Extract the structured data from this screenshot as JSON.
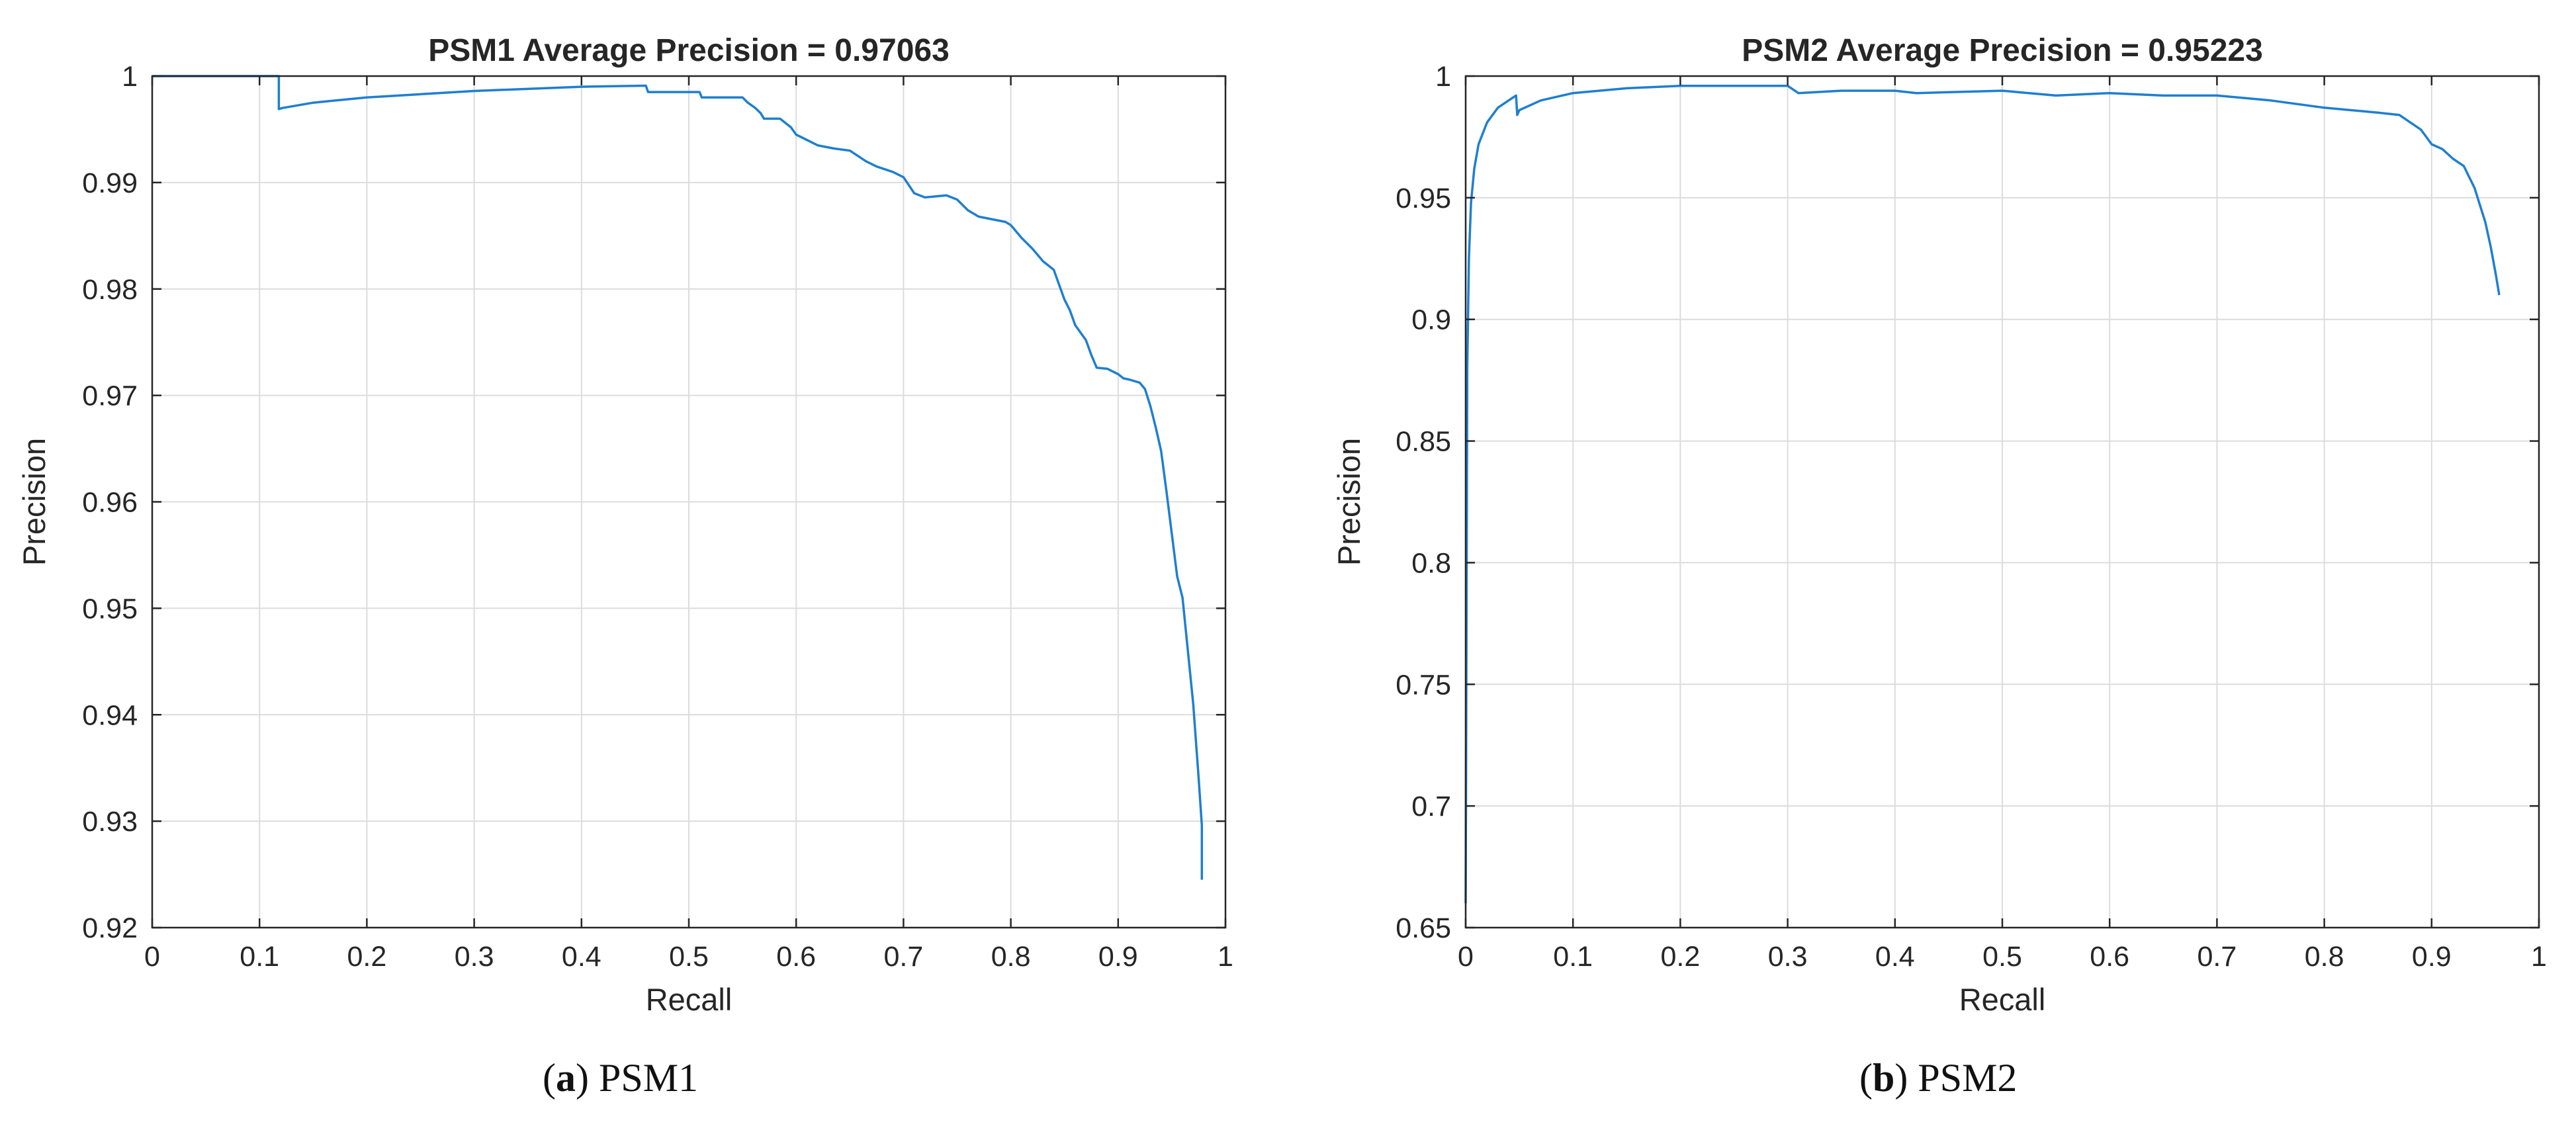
{
  "chart_data": [
    {
      "type": "line",
      "title": "PSM1 Average Precision = 0.97063",
      "xlabel": "Recall",
      "ylabel": "Precision",
      "xlim": [
        0,
        1
      ],
      "ylim": [
        0.92,
        1
      ],
      "xticks": [
        0,
        0.1,
        0.2,
        0.3,
        0.4,
        0.5,
        0.6,
        0.7,
        0.8,
        0.9,
        1
      ],
      "xtick_labels": [
        "0",
        "0.1",
        "0.2",
        "0.3",
        "0.4",
        "0.5",
        "0.6",
        "0.7",
        "0.8",
        "0.9",
        "1"
      ],
      "yticks": [
        0.92,
        0.93,
        0.94,
        0.95,
        0.96,
        0.97,
        0.98,
        0.99,
        1
      ],
      "ytick_labels": [
        "0.92",
        "0.93",
        "0.94",
        "0.95",
        "0.96",
        "0.97",
        "0.98",
        "0.99",
        "1"
      ],
      "grid": true,
      "color": "#1f7fd0",
      "series": [
        {
          "name": "PSM1",
          "x": [
            0,
            0.118,
            0.118,
            0.121,
            0.15,
            0.2,
            0.3,
            0.4,
            0.46,
            0.462,
            0.5,
            0.51,
            0.512,
            0.55,
            0.555,
            0.562,
            0.567,
            0.57,
            0.585,
            0.595,
            0.6,
            0.61,
            0.62,
            0.635,
            0.65,
            0.665,
            0.675,
            0.69,
            0.7,
            0.71,
            0.72,
            0.74,
            0.75,
            0.76,
            0.77,
            0.78,
            0.795,
            0.8,
            0.81,
            0.82,
            0.83,
            0.84,
            0.845,
            0.85,
            0.855,
            0.86,
            0.87,
            0.875,
            0.88,
            0.89,
            0.9,
            0.905,
            0.91,
            0.92,
            0.925,
            0.93,
            0.935,
            0.94,
            0.945,
            0.95,
            0.955,
            0.96,
            0.965,
            0.97,
            0.975,
            0.978,
            0.978
          ],
          "y": [
            1,
            1,
            0.9969,
            0.997,
            0.9975,
            0.998,
            0.9986,
            0.999,
            0.9991,
            0.9985,
            0.9985,
            0.9985,
            0.998,
            0.998,
            0.9975,
            0.997,
            0.9965,
            0.996,
            0.996,
            0.9952,
            0.9945,
            0.994,
            0.9935,
            0.9932,
            0.993,
            0.992,
            0.9915,
            0.991,
            0.9905,
            0.989,
            0.9886,
            0.9888,
            0.9884,
            0.9874,
            0.9868,
            0.9866,
            0.9863,
            0.986,
            0.9848,
            0.9838,
            0.9826,
            0.9818,
            0.9804,
            0.979,
            0.978,
            0.9766,
            0.9752,
            0.9738,
            0.9726,
            0.9725,
            0.972,
            0.9716,
            0.9715,
            0.9712,
            0.9706,
            0.969,
            0.967,
            0.9648,
            0.961,
            0.957,
            0.953,
            0.951,
            0.946,
            0.941,
            0.934,
            0.9296,
            0.9245
          ]
        }
      ]
    },
    {
      "type": "line",
      "title": "PSM2 Average Precision = 0.95223",
      "xlabel": "Recall",
      "ylabel": "Precision",
      "xlim": [
        0,
        1
      ],
      "ylim": [
        0.65,
        1
      ],
      "xticks": [
        0,
        0.1,
        0.2,
        0.3,
        0.4,
        0.5,
        0.6,
        0.7,
        0.8,
        0.9,
        1
      ],
      "xtick_labels": [
        "0",
        "0.1",
        "0.2",
        "0.3",
        "0.4",
        "0.5",
        "0.6",
        "0.7",
        "0.8",
        "0.9",
        "1"
      ],
      "yticks": [
        0.65,
        0.7,
        0.75,
        0.8,
        0.85,
        0.9,
        0.95,
        1
      ],
      "ytick_labels": [
        "0.65",
        "0.7",
        "0.75",
        "0.8",
        "0.85",
        "0.9",
        "0.95",
        "1"
      ],
      "grid": true,
      "color": "#1f7fd0",
      "series": [
        {
          "name": "PSM2",
          "x": [
            0,
            0.0015,
            0.003,
            0.005,
            0.008,
            0.012,
            0.02,
            0.03,
            0.04,
            0.047,
            0.048,
            0.05,
            0.07,
            0.1,
            0.15,
            0.2,
            0.25,
            0.3,
            0.31,
            0.35,
            0.4,
            0.42,
            0.5,
            0.55,
            0.6,
            0.65,
            0.7,
            0.75,
            0.8,
            0.85,
            0.87,
            0.89,
            0.9,
            0.91,
            0.92,
            0.93,
            0.94,
            0.95,
            0.955,
            0.96,
            0.963
          ],
          "y": [
            0.66,
            0.88,
            0.925,
            0.948,
            0.962,
            0.972,
            0.981,
            0.987,
            0.99,
            0.992,
            0.984,
            0.986,
            0.99,
            0.993,
            0.995,
            0.996,
            0.996,
            0.996,
            0.993,
            0.994,
            0.994,
            0.993,
            0.994,
            0.992,
            0.993,
            0.992,
            0.992,
            0.99,
            0.987,
            0.985,
            0.984,
            0.978,
            0.972,
            0.97,
            0.966,
            0.963,
            0.954,
            0.94,
            0.93,
            0.918,
            0.91
          ]
        }
      ]
    }
  ],
  "captions": [
    {
      "letter": "a",
      "text": " PSM1"
    },
    {
      "letter": "b",
      "text": " PSM2"
    }
  ]
}
